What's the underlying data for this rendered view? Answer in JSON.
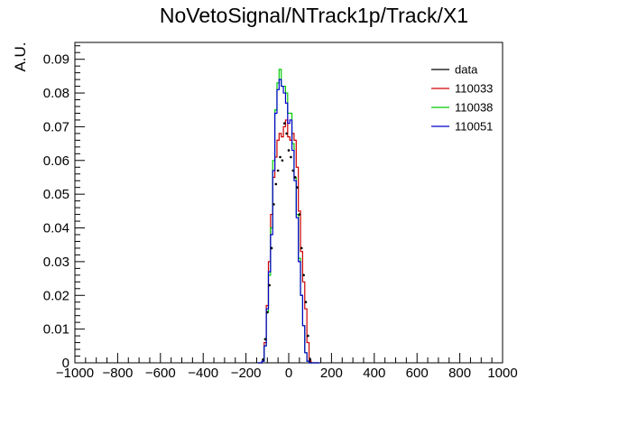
{
  "chart_data": {
    "type": "line",
    "title": "NoVetoSignal/NTrack1p/Track/X1",
    "xlabel": "",
    "ylabel": "A.U.",
    "xlim": [
      -1000,
      1000
    ],
    "ylim": [
      0,
      0.095
    ],
    "x_ticks": [
      -1000,
      -800,
      -600,
      -400,
      -200,
      0,
      200,
      400,
      600,
      800,
      1000
    ],
    "x_tick_labels": [
      "−1000",
      "−800",
      "−600",
      "−400",
      "−200",
      "0",
      "200",
      "400",
      "600",
      "800",
      "1000"
    ],
    "y_ticks": [
      0,
      0.01,
      0.02,
      0.03,
      0.04,
      0.05,
      0.06,
      0.07,
      0.08,
      0.09
    ],
    "y_tick_labels": [
      "0",
      "0.01",
      "0.02",
      "0.03",
      "0.04",
      "0.05",
      "0.06",
      "0.07",
      "0.08",
      "0.09"
    ],
    "grid": false,
    "legend_position": "top-right",
    "bin_width": 10,
    "x": [
      -140,
      -130,
      -120,
      -110,
      -100,
      -90,
      -80,
      -70,
      -60,
      -50,
      -40,
      -30,
      -20,
      -10,
      0,
      10,
      20,
      30,
      40,
      50,
      60,
      70,
      80,
      90,
      100,
      110,
      120,
      130,
      140
    ],
    "series": [
      {
        "name": "data",
        "style": "points",
        "color": "#000000",
        "values": [
          0,
          0,
          0.001,
          0.007,
          0.015,
          0.023,
          0.034,
          0.047,
          0.053,
          0.057,
          0.061,
          0.06,
          0.071,
          0.068,
          0.063,
          0.061,
          0.057,
          0.055,
          0.052,
          0.044,
          0.034,
          0.026,
          0.018,
          0.008,
          0.001,
          0,
          0,
          0,
          0
        ]
      },
      {
        "name": "110033",
        "style": "hist",
        "color": "#cc0000",
        "values": [
          0,
          0,
          0.0005,
          0.006,
          0.017,
          0.03,
          0.044,
          0.055,
          0.061,
          0.066,
          0.068,
          0.067,
          0.07,
          0.072,
          0.067,
          0.066,
          0.068,
          0.066,
          0.058,
          0.045,
          0.033,
          0.024,
          0.016,
          0.006,
          0.0005,
          0,
          0,
          0,
          0
        ]
      },
      {
        "name": "110038",
        "style": "hist",
        "color": "#00cc00",
        "values": [
          0,
          0,
          0.0005,
          0.005,
          0.015,
          0.026,
          0.04,
          0.06,
          0.075,
          0.083,
          0.087,
          0.082,
          0.082,
          0.08,
          0.074,
          0.074,
          0.065,
          0.055,
          0.044,
          0.031,
          0.02,
          0.011,
          0.003,
          0.0005,
          0,
          0,
          0,
          0,
          0
        ]
      },
      {
        "name": "110051",
        "style": "hist",
        "color": "#0000cc",
        "values": [
          0,
          0,
          0.0005,
          0.005,
          0.016,
          0.027,
          0.038,
          0.057,
          0.074,
          0.081,
          0.084,
          0.082,
          0.08,
          0.077,
          0.071,
          0.072,
          0.063,
          0.054,
          0.043,
          0.03,
          0.02,
          0.011,
          0.003,
          0.0005,
          0,
          0,
          0,
          0,
          0
        ]
      }
    ]
  }
}
